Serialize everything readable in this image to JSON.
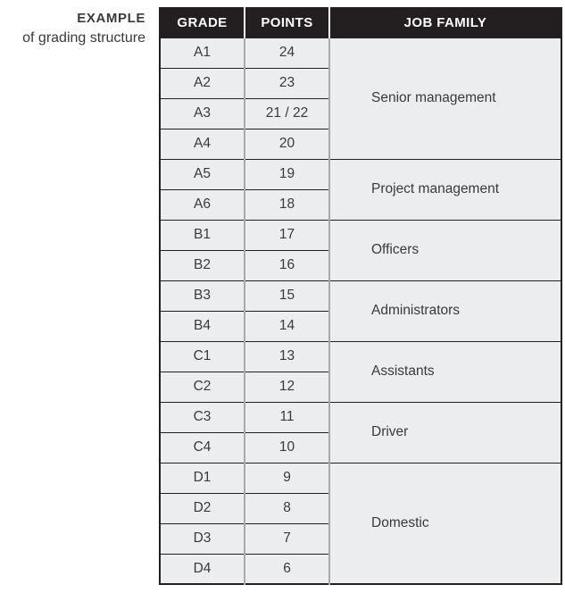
{
  "caption": {
    "title": "EXAMPLE",
    "subtitle": "of grading structure"
  },
  "table": {
    "headers": [
      "GRADE",
      "POINTS",
      "JOB FAMILY"
    ],
    "groups": [
      {
        "job_family": "Senior management",
        "rows": [
          {
            "grade": "A1",
            "points": "24"
          },
          {
            "grade": "A2",
            "points": "23"
          },
          {
            "grade": "A3",
            "points": "21 / 22"
          },
          {
            "grade": "A4",
            "points": "20"
          }
        ]
      },
      {
        "job_family": "Project management",
        "rows": [
          {
            "grade": "A5",
            "points": "19"
          },
          {
            "grade": "A6",
            "points": "18"
          }
        ]
      },
      {
        "job_family": "Officers",
        "rows": [
          {
            "grade": "B1",
            "points": "17"
          },
          {
            "grade": "B2",
            "points": "16"
          }
        ]
      },
      {
        "job_family": "Administrators",
        "rows": [
          {
            "grade": "B3",
            "points": "15"
          },
          {
            "grade": "B4",
            "points": "14"
          }
        ]
      },
      {
        "job_family": "Assistants",
        "rows": [
          {
            "grade": "C1",
            "points": "13"
          },
          {
            "grade": "C2",
            "points": "12"
          }
        ]
      },
      {
        "job_family": "Driver",
        "rows": [
          {
            "grade": "C3",
            "points": "11"
          },
          {
            "grade": "C4",
            "points": "10"
          }
        ]
      },
      {
        "job_family": "Domestic",
        "rows": [
          {
            "grade": "D1",
            "points": "9"
          },
          {
            "grade": "D2",
            "points": "8"
          },
          {
            "grade": "D3",
            "points": "7"
          },
          {
            "grade": "D4",
            "points": "6"
          }
        ]
      }
    ]
  },
  "colors": {
    "header_bg": "#231f20",
    "header_text": "#ffffff",
    "body_bg": "#ebedee",
    "body_text": "#3a3a3c",
    "grid_dark": "#231f20",
    "grid_gray": "#a7a9ac"
  }
}
